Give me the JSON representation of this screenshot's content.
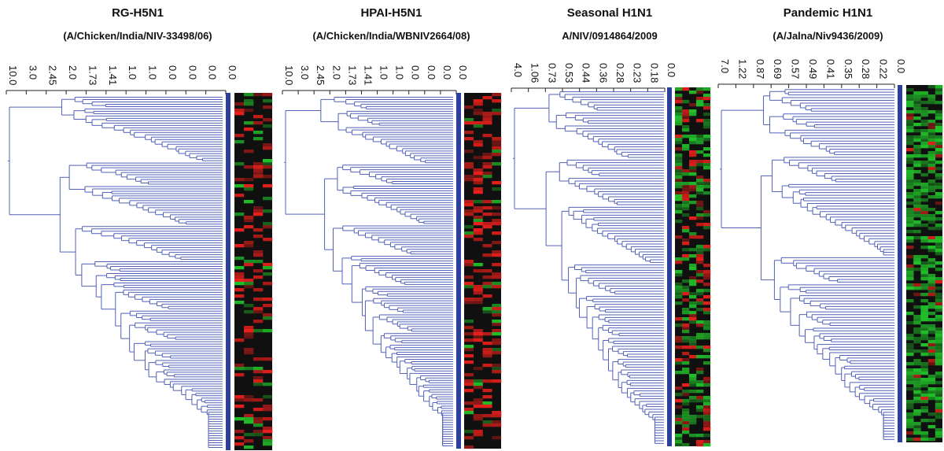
{
  "panels": [
    {
      "title": "RG-H5N1",
      "subtitle": "(A/Chicken/India/NIV-33498/06)",
      "ticks": [
        "10.0",
        "3.0",
        "2.45",
        "2.0",
        "1.73",
        "1.41",
        "1.0",
        "1.0",
        "0.0",
        "0.0",
        "0.0",
        "0.0"
      ],
      "heatmap_palette": "red-green"
    },
    {
      "title": "HPAI-H5N1",
      "subtitle": "(A/Chicken/India/WBNIV2664/08)",
      "ticks": [
        "10.0",
        "3.0",
        "2.45",
        "2.0",
        "1.73",
        "1.41",
        "1.0",
        "1.0",
        "0.0",
        "0.0",
        "0.0",
        "0.0"
      ],
      "heatmap_palette": "red-green"
    },
    {
      "title": "Seasonal H1N1",
      "subtitle": "A/NIV/0914864/2009",
      "ticks": [
        "4.0",
        "1.06",
        "0.73",
        "0.53",
        "0.44",
        "0.36",
        "0.28",
        "0.23",
        "0.18",
        "0.0"
      ],
      "heatmap_palette": "red-green"
    },
    {
      "title": "Pandemic H1N1",
      "subtitle": "(A/Jalna/Niv9436/2009)",
      "ticks": [
        "7.0",
        "1.22",
        "0.87",
        "0.69",
        "0.57",
        "0.49",
        "0.41",
        "0.35",
        "0.28",
        "0.22",
        "0.0"
      ],
      "heatmap_palette": "red-green"
    }
  ],
  "colors": {
    "tree": "#5060b8",
    "bar": "#2c3f9c",
    "red": "#e8201c",
    "green": "#22c02a"
  }
}
